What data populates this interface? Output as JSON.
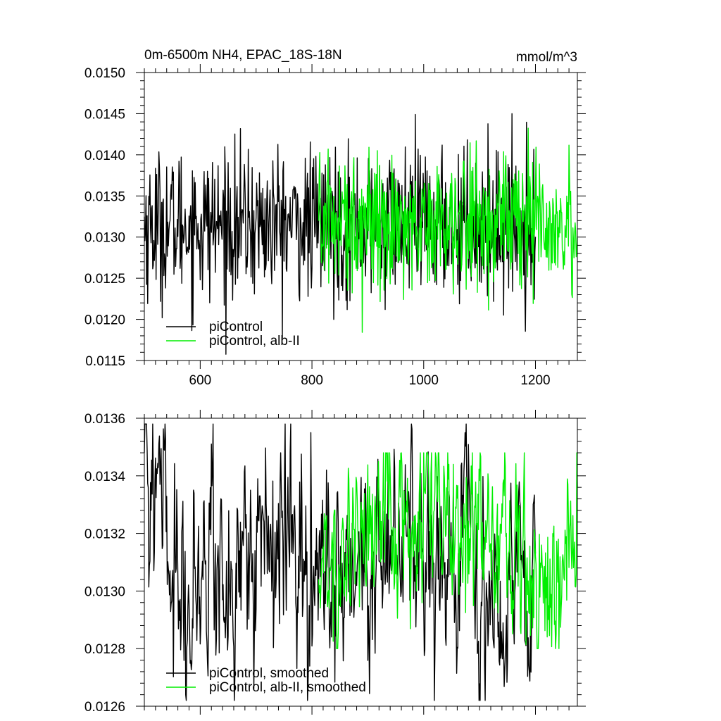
{
  "figure": {
    "title_left": "0m-6500m NH4, EPAC_18S-18N",
    "title_right": "mmol/m^3"
  },
  "colors": {
    "piControl": "#000000",
    "alb_II": "#00ee00",
    "axes": "#000000",
    "background": "#ffffff"
  },
  "chart_data": [
    {
      "type": "line",
      "panel": "top",
      "xlim": [
        500,
        1275
      ],
      "ylim": [
        0.0115,
        0.015
      ],
      "x_ticks": [
        600,
        800,
        1000,
        1200
      ],
      "x_tick_labels": [
        "600",
        "800",
        "1000",
        "1200"
      ],
      "y_ticks": [
        0.0115,
        0.012,
        0.0125,
        0.013,
        0.0135,
        0.014,
        0.0145,
        0.015
      ],
      "y_tick_labels": [
        "0.0115",
        "0.0120",
        "0.0125",
        "0.0130",
        "0.0135",
        "0.0140",
        "0.0145",
        "0.0150"
      ],
      "grid": false,
      "legend_position": "bottom-left",
      "series": [
        {
          "name": "piControl",
          "color_key": "piControl",
          "x_range": [
            500,
            1200
          ],
          "mean": 0.01315,
          "spread": 0.0006,
          "noise": "annual",
          "y_min_observed": 0.01155,
          "y_max_observed": 0.0146
        },
        {
          "name": "piControl, alb-II",
          "color_key": "alb_II",
          "x_range": [
            812,
            1275
          ],
          "mean": 0.0132,
          "spread": 0.00055,
          "noise": "annual",
          "y_min_observed": 0.01163,
          "y_max_observed": 0.01445
        }
      ]
    },
    {
      "type": "line",
      "panel": "bottom",
      "xlim": [
        500,
        1275
      ],
      "ylim": [
        0.0126,
        0.0136
      ],
      "x_ticks": [
        600,
        800,
        1000,
        1200
      ],
      "x_tick_labels": [],
      "y_ticks": [
        0.0126,
        0.0128,
        0.013,
        0.0132,
        0.0134,
        0.0136
      ],
      "y_tick_labels": [
        "0.0126",
        "0.0128",
        "0.0130",
        "0.0132",
        "0.0134",
        "0.0136"
      ],
      "grid": false,
      "legend_position": "bottom-left",
      "series": [
        {
          "name": "piControl, smoothed",
          "color_key": "piControl",
          "x_range": [
            500,
            1200
          ],
          "anchors_x": [
            500,
            520,
            540,
            560,
            580,
            600,
            620,
            640,
            660,
            680,
            700,
            720,
            740,
            760,
            780,
            800,
            820,
            840,
            860,
            880,
            900,
            920,
            940,
            960,
            980,
            1000,
            1020,
            1040,
            1060,
            1080,
            1100,
            1120,
            1140,
            1160,
            1180,
            1200
          ],
          "anchors_y": [
            0.0135,
            0.0133,
            0.0132,
            0.01305,
            0.013,
            0.0131,
            0.01315,
            0.013,
            0.01305,
            0.0131,
            0.01315,
            0.0131,
            0.01315,
            0.0132,
            0.0131,
            0.013,
            0.01305,
            0.013,
            0.01305,
            0.0131,
            0.013,
            0.01305,
            0.0132,
            0.0131,
            0.01325,
            0.0132,
            0.01315,
            0.0131,
            0.0132,
            0.01325,
            0.0131,
            0.013,
            0.01295,
            0.01305,
            0.013,
            0.01305
          ],
          "variability": 0.00025,
          "y_min_observed": 0.01262,
          "y_max_observed": 0.01358
        },
        {
          "name": "piControl, alb-II, smoothed",
          "color_key": "alb_II",
          "x_range": [
            812,
            1275
          ],
          "anchors_x": [
            812,
            840,
            860,
            880,
            900,
            920,
            940,
            960,
            980,
            1000,
            1020,
            1040,
            1060,
            1080,
            1100,
            1120,
            1140,
            1160,
            1180,
            1200,
            1220,
            1240,
            1260,
            1275
          ],
          "anchors_y": [
            0.013,
            0.0131,
            0.01315,
            0.0132,
            0.01315,
            0.0132,
            0.01325,
            0.01315,
            0.0132,
            0.01325,
            0.0132,
            0.0132,
            0.01325,
            0.0132,
            0.0132,
            0.0132,
            0.0131,
            0.01305,
            0.0131,
            0.013,
            0.01295,
            0.013,
            0.01315,
            0.0133
          ],
          "variability": 0.00022,
          "y_min_observed": 0.0128,
          "y_max_observed": 0.01348
        }
      ]
    }
  ]
}
